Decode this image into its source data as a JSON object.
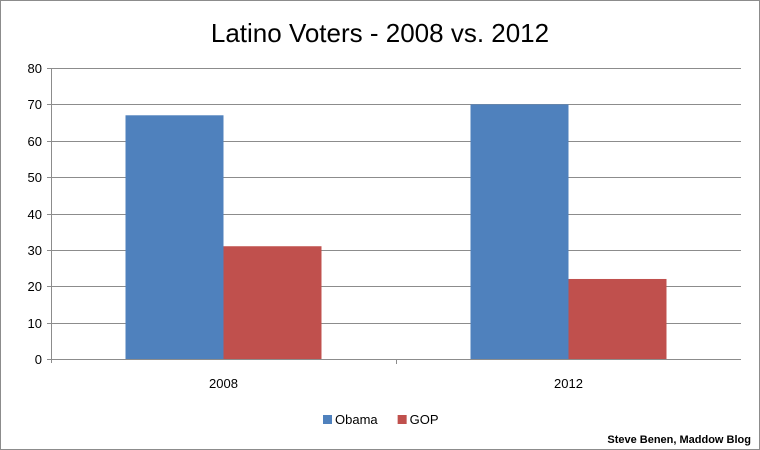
{
  "chart_data": {
    "type": "bar",
    "title": "Latino Voters - 2008 vs. 2012",
    "categories": [
      "2008",
      "2012"
    ],
    "series": [
      {
        "name": "Obama",
        "values": [
          67,
          70
        ],
        "color": "#4f81bd"
      },
      {
        "name": "GOP",
        "values": [
          31,
          22
        ],
        "color": "#c0504d"
      }
    ],
    "ylim": [
      0,
      80
    ],
    "yticks": [
      0,
      10,
      20,
      30,
      40,
      50,
      60,
      70,
      80
    ],
    "grid": true,
    "legend_position": "bottom"
  },
  "credit": "Steve Benen, Maddow Blog"
}
